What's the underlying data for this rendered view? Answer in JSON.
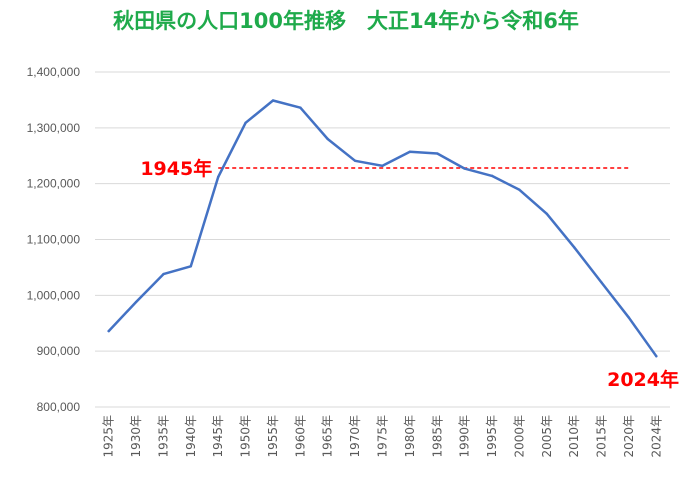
{
  "chart_data": {
    "type": "line",
    "title": "秋田県の人口100年推移　大正14年から令和6年",
    "xlabel": "",
    "ylabel": "",
    "categories": [
      "1925年",
      "1930年",
      "1935年",
      "1940年",
      "1945年",
      "1950年",
      "1955年",
      "1960年",
      "1965年",
      "1970年",
      "1975年",
      "1980年",
      "1985年",
      "1990年",
      "1995年",
      "2000年",
      "2005年",
      "2010年",
      "2015年",
      "2020年",
      "2024年"
    ],
    "series": [
      {
        "values": [
          936000,
          988000,
          1038000,
          1052000,
          1212000,
          1309000,
          1349000,
          1336000,
          1280000,
          1241000,
          1232000,
          1257000,
          1254000,
          1227000,
          1214000,
          1189000,
          1146000,
          1086000,
          1023000,
          960000,
          891000
        ]
      }
    ],
    "ylim": [
      800000,
      1400000
    ],
    "yticks": [
      800000,
      900000,
      1000000,
      1100000,
      1200000,
      1300000,
      1400000
    ],
    "ytick_labels": [
      "800,000",
      "900,000",
      "1,000,000",
      "1,100,000",
      "1,200,000",
      "1,300,000",
      "1,400,000"
    ],
    "grid": true,
    "reference_line": {
      "value": 1228000,
      "style": "dashed"
    },
    "annotations": [
      {
        "text": "1945年",
        "target": "reference-line-start"
      },
      {
        "text": "2024年",
        "target": "last-point"
      }
    ],
    "colors": {
      "title": "#1faa4b",
      "line": "#4472c4",
      "annotation": "#ff0000",
      "grid": "#d9d9d9",
      "axis_text": "#595959"
    }
  }
}
